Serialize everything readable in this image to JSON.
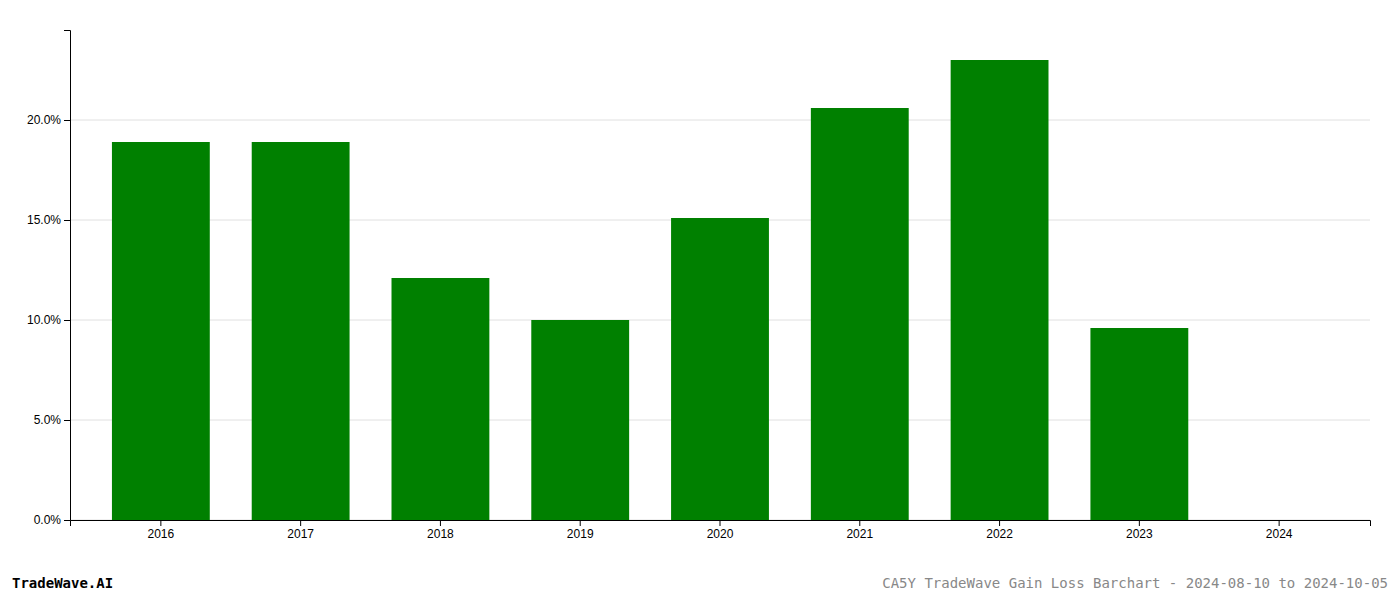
{
  "chart_data": {
    "type": "bar",
    "categories": [
      "2016",
      "2017",
      "2018",
      "2019",
      "2020",
      "2021",
      "2022",
      "2023",
      "2024"
    ],
    "values": [
      0.189,
      0.189,
      0.121,
      0.1,
      0.151,
      0.206,
      0.23,
      0.096,
      0.0
    ],
    "color": "#008000",
    "ylim": [
      0,
      0.245
    ],
    "yticks": [
      {
        "value": 0.0,
        "label": "0.0%"
      },
      {
        "value": 0.05,
        "label": "5.0%"
      },
      {
        "value": 0.1,
        "label": "10.0%"
      },
      {
        "value": 0.15,
        "label": "15.0%"
      },
      {
        "value": 0.2,
        "label": "20.0%"
      }
    ],
    "grid": true,
    "annotations": [
      "TradeWave.AI",
      "CA5Y TradeWave Gain Loss Barchart - 2024-08-10 to 2024-10-05"
    ]
  }
}
